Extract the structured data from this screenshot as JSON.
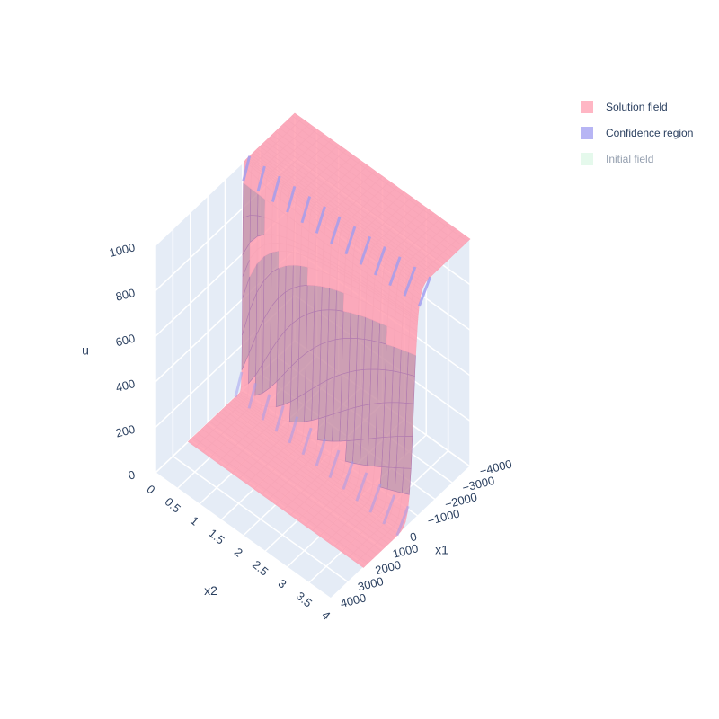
{
  "chart_data": {
    "type": "surface3d",
    "title": "",
    "scene": {
      "xaxis": {
        "title": "x1",
        "range": [
          -4000,
          4000
        ],
        "ticks": [
          "−4000",
          "−3000",
          "−2000",
          "−1000",
          "0",
          "1000",
          "2000",
          "3000",
          "4000"
        ]
      },
      "yaxis": {
        "title": "x2",
        "range": [
          0,
          4
        ],
        "ticks": [
          "0",
          "0.5",
          "1",
          "1.5",
          "2",
          "2.5",
          "3",
          "3.5",
          "4"
        ]
      },
      "zaxis": {
        "title": "u",
        "range": [
          0,
          1000
        ],
        "ticks": [
          "0",
          "200",
          "400",
          "600",
          "800",
          "1000"
        ]
      },
      "grid": true,
      "background": "#e5ecf6"
    },
    "series": [
      {
        "name": "Solution field",
        "color": "#ff9eb0",
        "opacity": 0.7,
        "visible": true,
        "profile": {
          "x2": 0,
          "front_x1": -1000,
          "low": 0,
          "high": 1000,
          "width_grows_with_x2": true
        }
      },
      {
        "name": "Confidence region",
        "color": "#9f9cf0",
        "opacity": 0.5,
        "visible": true
      },
      {
        "name": "Initial field",
        "color": "#bff0cf",
        "opacity": 0.5,
        "visible": false
      }
    ],
    "legend_position": "top-right"
  }
}
